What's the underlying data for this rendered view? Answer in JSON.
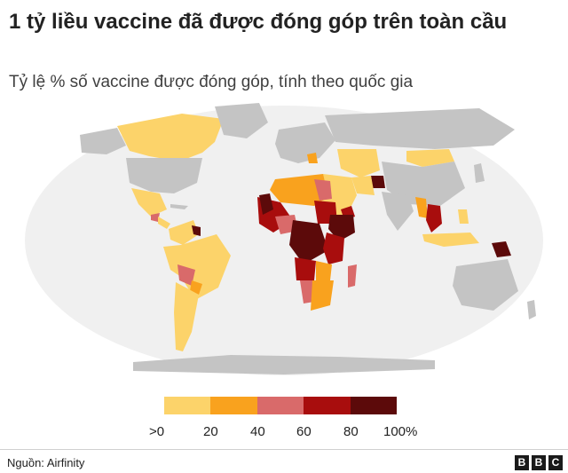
{
  "header": {
    "title": "1 tỷ liều vaccine đã được đóng góp trên toàn cầu",
    "subtitle": "Tỷ lệ % số vaccine được đóng góp, tính theo quốc gia"
  },
  "legend": {
    "ticks": [
      ">0",
      "20",
      "40",
      "60",
      "80",
      "100%"
    ],
    "bins": [
      {
        "from": 0,
        "to": 20,
        "color": "#fcd36a"
      },
      {
        "from": 20,
        "to": 40,
        "color": "#f9a21e"
      },
      {
        "from": 40,
        "to": 60,
        "color": "#d96a6a"
      },
      {
        "from": 60,
        "to": 80,
        "color": "#a80d0d"
      },
      {
        "from": 80,
        "to": 100,
        "color": "#5c0a0a"
      }
    ]
  },
  "colors": {
    "ocean": "#f0f0f0",
    "no_data": "#c4c4c4"
  },
  "footer": {
    "source": "Nguồn: Airfinity",
    "logo_letters": [
      "B",
      "B",
      "C"
    ]
  }
}
